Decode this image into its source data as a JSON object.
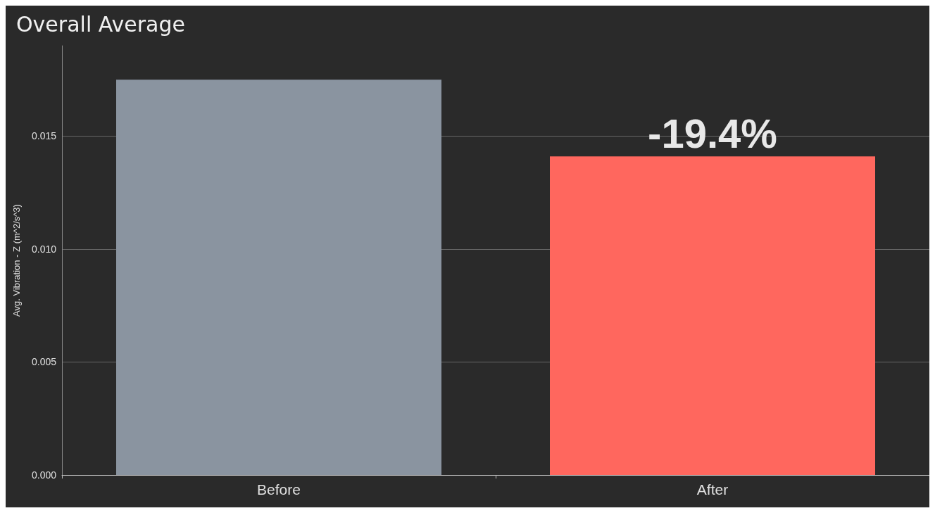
{
  "chart_data": {
    "type": "bar",
    "title": "Overall Average",
    "ylabel": "Avg. Vibration - Z (m^2/s^3)",
    "categories": [
      "Before",
      "After"
    ],
    "values": [
      0.0175,
      0.0141
    ],
    "colors": [
      "#8a94a0",
      "#ff675e"
    ],
    "ylim": [
      0,
      0.019
    ],
    "yticks": [
      {
        "value": 0,
        "label": "0.000"
      },
      0.005,
      {
        "value": 0.01,
        "label": "0.010"
      },
      0.015
    ],
    "grid": "y",
    "annotations": [
      {
        "text": "-19.4%",
        "x": "After",
        "y": 0.0141
      }
    ]
  }
}
